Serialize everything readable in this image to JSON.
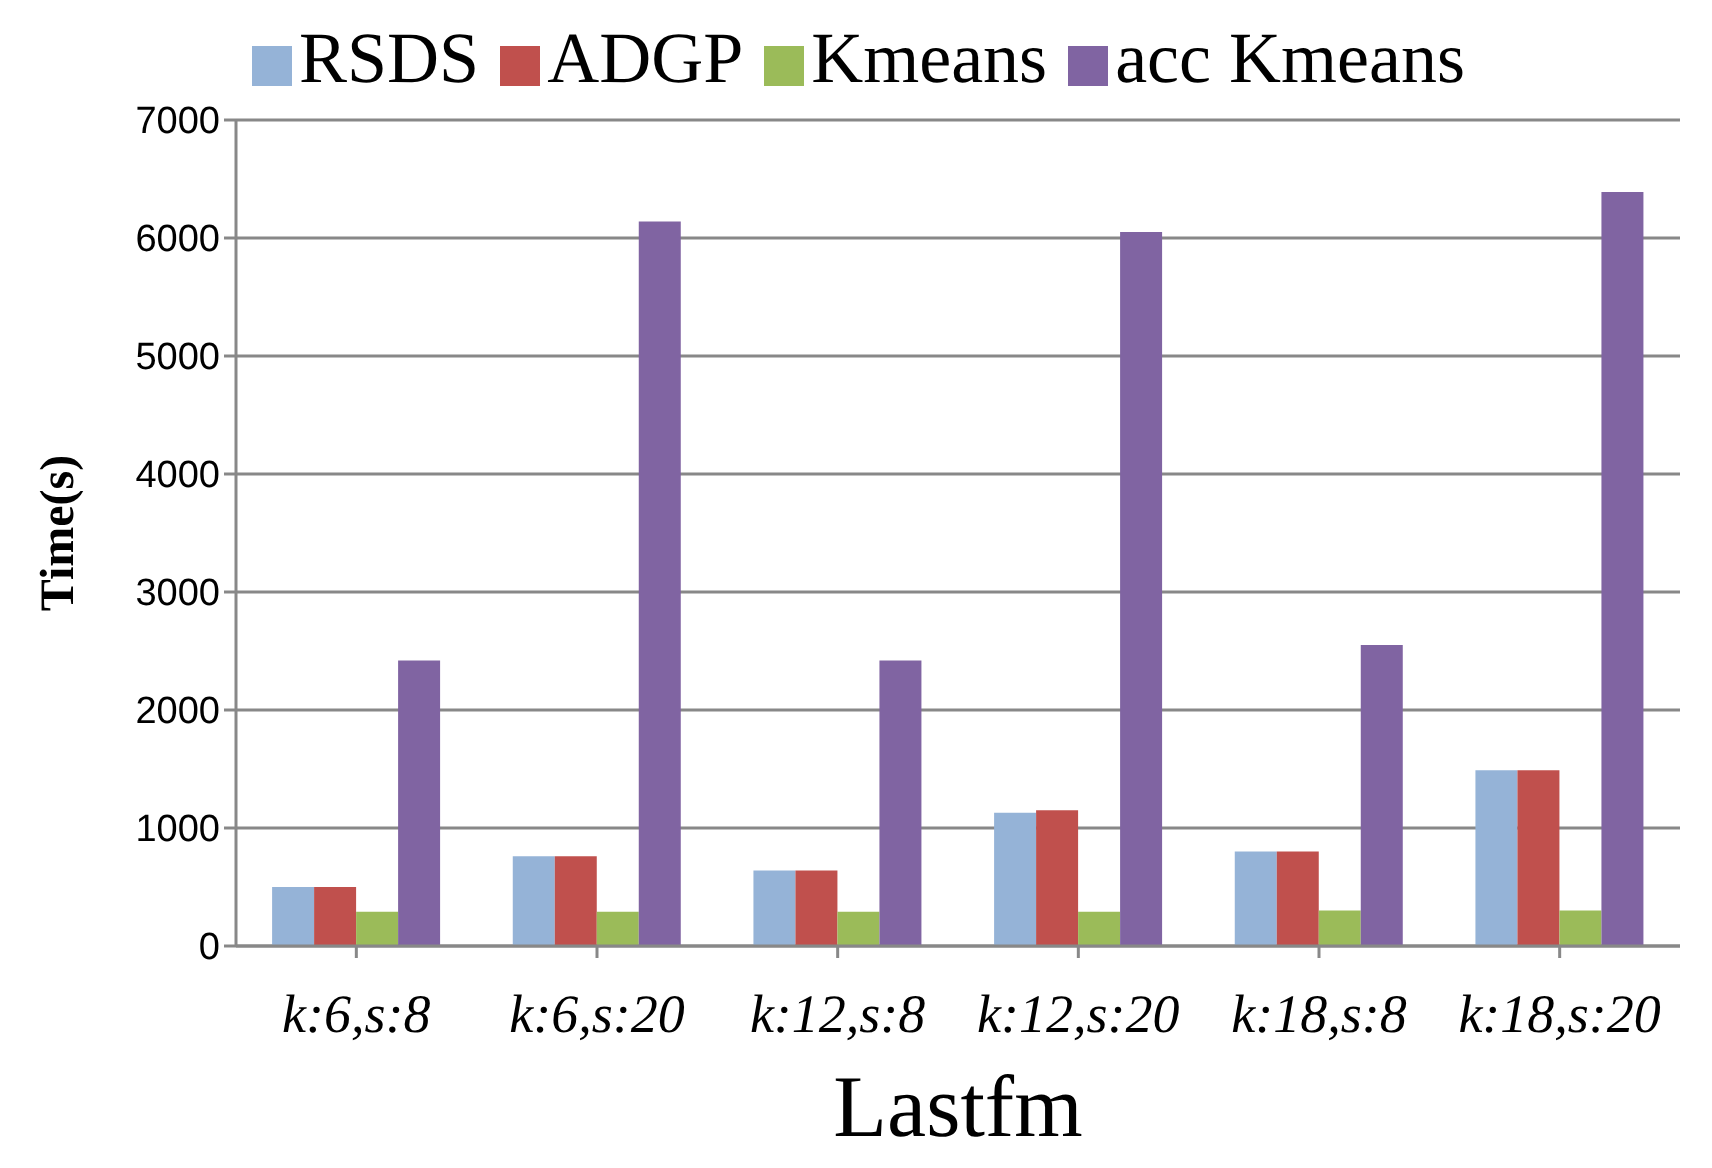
{
  "chart_data": {
    "type": "bar",
    "xlabel": "Lastfm",
    "ylabel": "Time(s)",
    "categories": [
      "k:6,s:8",
      "k:6,s:20",
      "k:12,s:8",
      "k:12,s:20",
      "k:18,s:8",
      "k:18,s:20"
    ],
    "series": [
      {
        "name": "RSDS",
        "color": "#95b3d7",
        "values": [
          500,
          760,
          640,
          1130,
          800,
          1490
        ]
      },
      {
        "name": "ADGP",
        "color": "#c0504d",
        "values": [
          500,
          760,
          640,
          1150,
          800,
          1490
        ]
      },
      {
        "name": "Kmeans",
        "color": "#9bbb59",
        "values": [
          290,
          290,
          290,
          290,
          300,
          300
        ]
      },
      {
        "name": "acc Kmeans",
        "color": "#8064a2",
        "values": [
          2420,
          6140,
          2420,
          6050,
          2550,
          6390
        ]
      }
    ],
    "ylim": [
      0,
      7000
    ],
    "yticks": [
      0,
      1000,
      2000,
      3000,
      4000,
      5000,
      6000,
      7000
    ],
    "grid": "y",
    "legend": "top"
  }
}
